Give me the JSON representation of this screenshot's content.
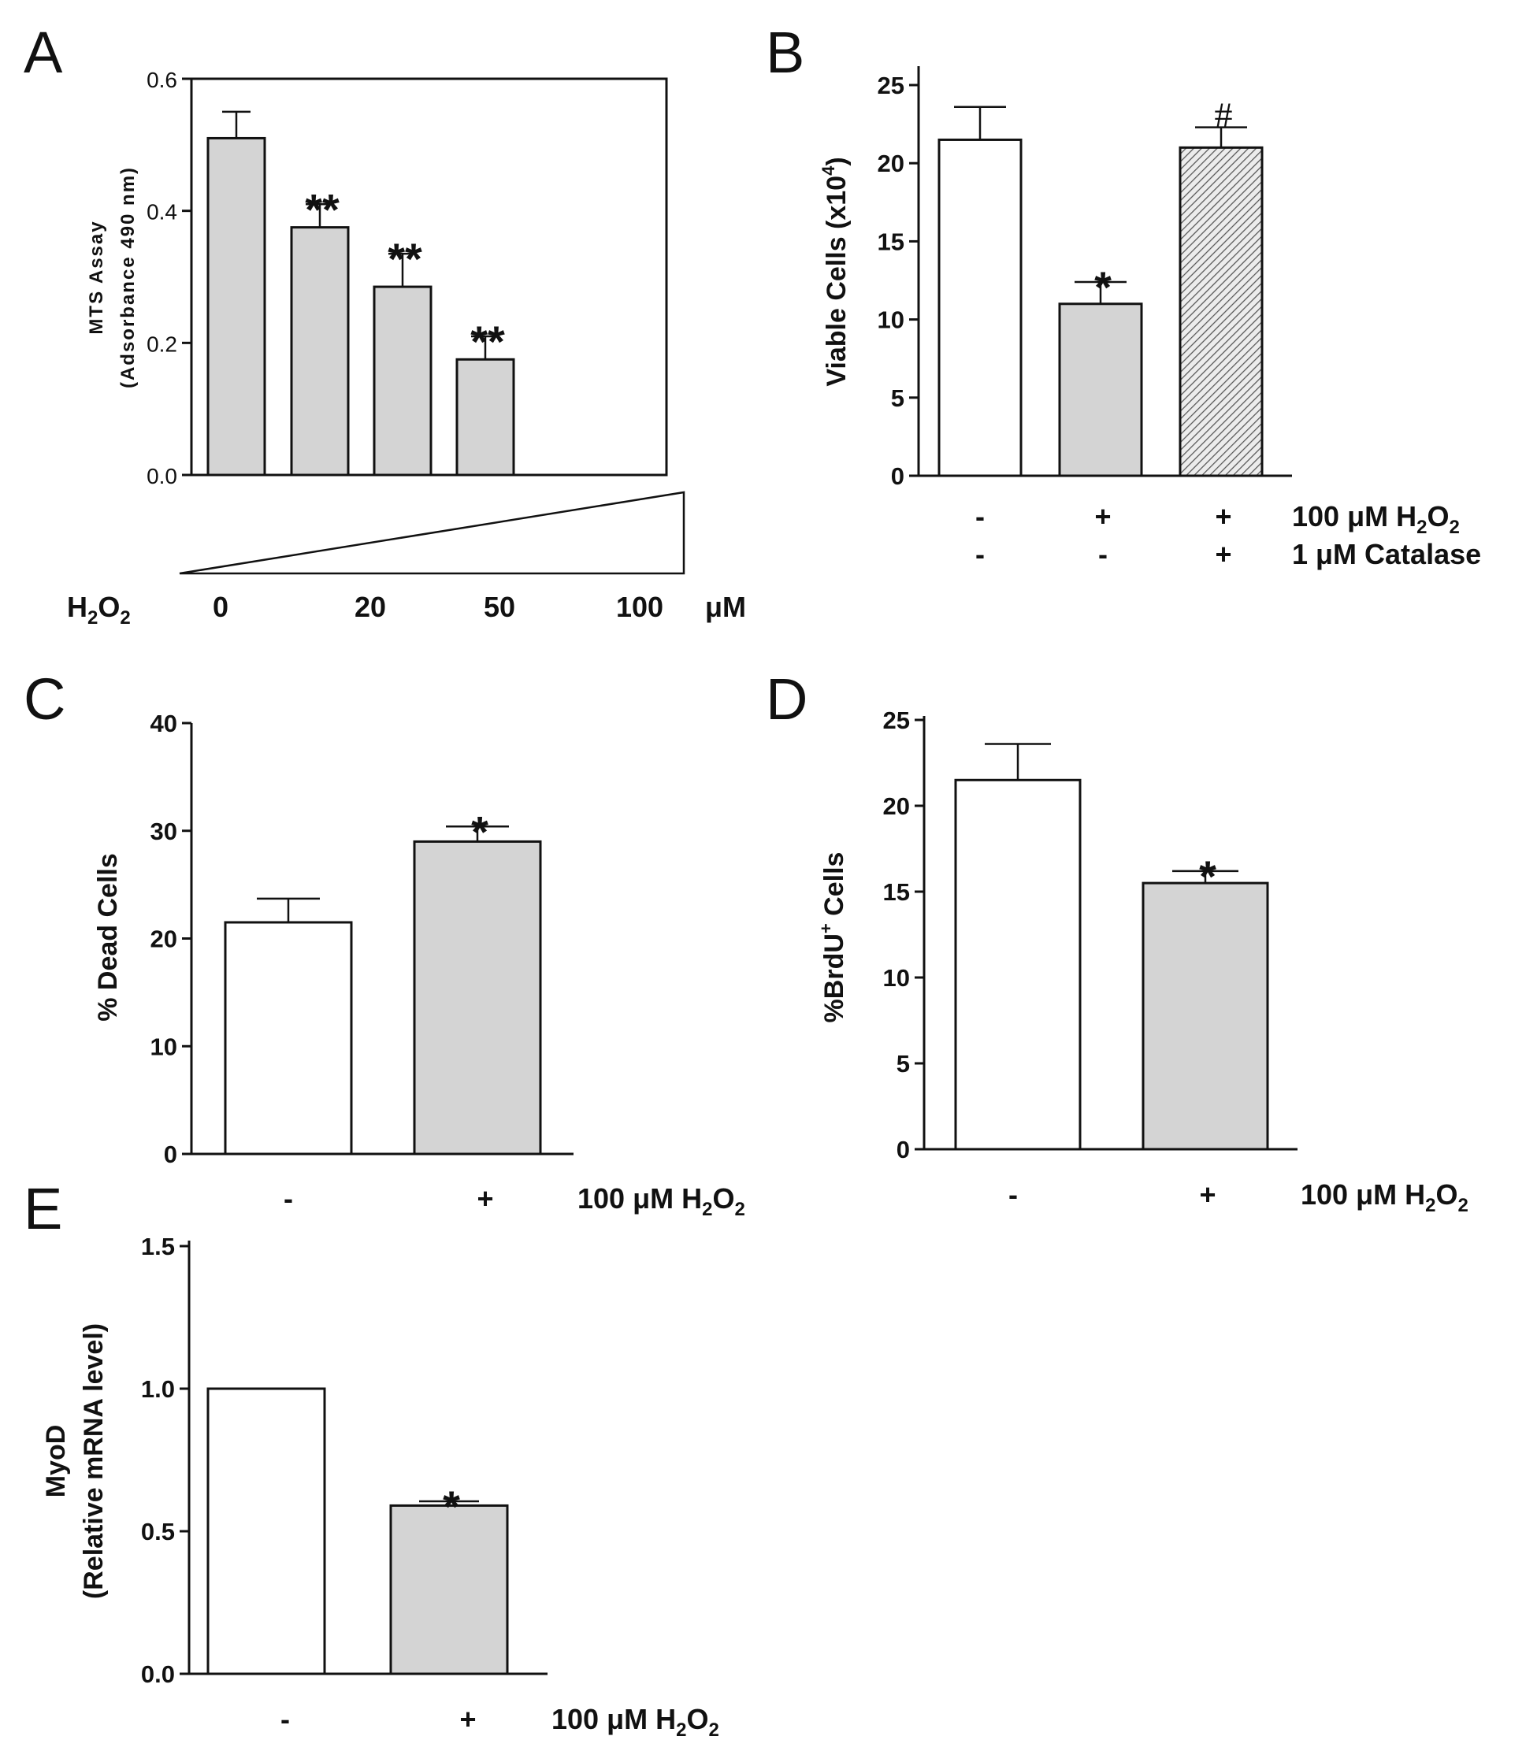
{
  "chart_data": [
    {
      "panel": "A",
      "type": "bar",
      "categories": [
        "0",
        "20",
        "50",
        "100"
      ],
      "values": [
        0.51,
        0.375,
        0.285,
        0.175
      ],
      "errors": [
        0.04,
        0.035,
        0.05,
        0.035
      ],
      "significance": [
        "",
        "**",
        "**",
        "**"
      ],
      "ylabel_line1": "MTS Assay",
      "ylabel_line2": "(Adsorbance 490 nm)",
      "ylim": [
        0,
        0.6
      ],
      "yticks": [
        "0.0",
        "0.2",
        "0.4",
        "0.6"
      ],
      "treatment_label": "H2O2",
      "unit": "μM",
      "bar_colors": [
        "#d4d4d4",
        "#d4d4d4",
        "#d4d4d4",
        "#d4d4d4"
      ]
    },
    {
      "panel": "B",
      "type": "bar",
      "values": [
        21.5,
        11,
        21
      ],
      "errors": [
        2.1,
        1.4,
        1.3
      ],
      "significance": [
        "",
        "*",
        "#"
      ],
      "ylabel": "Viable Cells (x10",
      "ylabel_sup": "4",
      "ylim": [
        0,
        25
      ],
      "yticks": [
        "0",
        "5",
        "10",
        "15",
        "20",
        "25"
      ],
      "conditions": [
        {
          "label": "100 μM H",
          "sub": "2",
          "mid": "O",
          "sub2": "2",
          "marks": [
            "-",
            "+",
            "+"
          ]
        },
        {
          "label": "1 μM Catalase",
          "marks": [
            "-",
            "-",
            "+"
          ]
        }
      ],
      "bar_colors": [
        "#ffffff",
        "#d4d4d4",
        "hatched"
      ]
    },
    {
      "panel": "C",
      "type": "bar",
      "values": [
        21.5,
        29
      ],
      "errors": [
        2.2,
        1.4
      ],
      "significance": [
        "",
        "*"
      ],
      "ylabel": "% Dead Cells",
      "ylim": [
        0,
        40
      ],
      "yticks": [
        "0",
        "10",
        "20",
        "30",
        "40"
      ],
      "marks": [
        "-",
        "+"
      ],
      "condition_label": "100 μM H",
      "bar_colors": [
        "#ffffff",
        "#d4d4d4"
      ]
    },
    {
      "panel": "D",
      "type": "bar",
      "values": [
        21.5,
        15.5
      ],
      "errors": [
        2.1,
        0.7
      ],
      "significance": [
        "",
        "*"
      ],
      "ylabel": "%BrdU",
      "ylabel_sup": "+",
      "ylabel_tail": " Cells",
      "ylim": [
        0,
        25
      ],
      "yticks": [
        "0",
        "5",
        "10",
        "15",
        "20",
        "25"
      ],
      "marks": [
        "-",
        "+"
      ],
      "condition_label": "100 μM H",
      "bar_colors": [
        "#ffffff",
        "#d4d4d4"
      ]
    },
    {
      "panel": "E",
      "type": "bar",
      "values": [
        1.0,
        0.59
      ],
      "errors": [
        0,
        0.015
      ],
      "significance": [
        "",
        "*"
      ],
      "ylabel_line1": "MyoD",
      "ylabel_line2": "(Relative mRNA level)",
      "ylim": [
        0,
        1.5
      ],
      "yticks": [
        "0.0",
        "0.5",
        "1.0",
        "1.5"
      ],
      "marks": [
        "-",
        "+"
      ],
      "condition_label": "100 μM H",
      "bar_colors": [
        "#ffffff",
        "#d4d4d4"
      ]
    }
  ],
  "formula": {
    "h": "H",
    "o": "O",
    "two": "2"
  }
}
